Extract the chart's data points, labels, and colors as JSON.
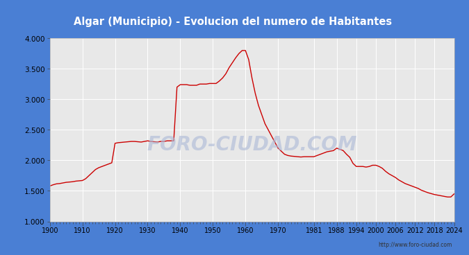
{
  "title": "Algar (Municipio) - Evolucion del numero de Habitantes",
  "title_bg_color": "#4a7fd4",
  "title_text_color": "#ffffff",
  "plot_bg_color": "#e8e8e8",
  "figure_bg_color": "#4a7fd4",
  "line_color": "#cc0000",
  "watermark_text": "FORO-CIUDAD.COM",
  "watermark_color": "#b0bcd8",
  "url_text": "http://www.foro-ciudad.com",
  "grid_color": "#ffffff",
  "ylim": [
    1000,
    4000
  ],
  "xlim": [
    1900,
    2024
  ],
  "ytick_labels": [
    "1.000",
    "1.500",
    "2.000",
    "2.500",
    "3.000",
    "3.500",
    "4.000"
  ],
  "ytick_values": [
    1000,
    1500,
    2000,
    2500,
    3000,
    3500,
    4000
  ],
  "xtick_values": [
    1900,
    1910,
    1920,
    1930,
    1940,
    1950,
    1960,
    1970,
    1981,
    1988,
    1994,
    2000,
    2006,
    2012,
    2018,
    2024
  ],
  "years": [
    1900,
    1901,
    1902,
    1903,
    1904,
    1905,
    1906,
    1907,
    1908,
    1909,
    1910,
    1911,
    1912,
    1913,
    1914,
    1915,
    1916,
    1917,
    1918,
    1919,
    1920,
    1921,
    1922,
    1923,
    1924,
    1925,
    1926,
    1927,
    1928,
    1929,
    1930,
    1931,
    1932,
    1933,
    1934,
    1935,
    1936,
    1937,
    1938,
    1939,
    1940,
    1941,
    1942,
    1943,
    1944,
    1945,
    1946,
    1947,
    1948,
    1949,
    1950,
    1951,
    1952,
    1953,
    1954,
    1955,
    1956,
    1957,
    1958,
    1959,
    1960,
    1961,
    1962,
    1963,
    1964,
    1965,
    1966,
    1967,
    1968,
    1969,
    1970,
    1971,
    1972,
    1973,
    1974,
    1975,
    1976,
    1977,
    1978,
    1979,
    1980,
    1981,
    1982,
    1983,
    1984,
    1985,
    1986,
    1987,
    1988,
    1989,
    1990,
    1991,
    1992,
    1993,
    1994,
    1995,
    1996,
    1997,
    1998,
    1999,
    2000,
    2001,
    2002,
    2003,
    2004,
    2005,
    2006,
    2007,
    2008,
    2009,
    2010,
    2011,
    2012,
    2013,
    2014,
    2015,
    2016,
    2017,
    2018,
    2019,
    2020,
    2021,
    2022,
    2023,
    2024
  ],
  "population": [
    1580,
    1600,
    1615,
    1620,
    1630,
    1640,
    1645,
    1650,
    1660,
    1665,
    1670,
    1700,
    1750,
    1800,
    1850,
    1880,
    1900,
    1920,
    1940,
    1960,
    2280,
    2290,
    2295,
    2300,
    2305,
    2310,
    2310,
    2305,
    2300,
    2310,
    2320,
    2310,
    2305,
    2300,
    2310,
    2310,
    2320,
    2320,
    2320,
    3200,
    3240,
    3240,
    3240,
    3230,
    3230,
    3230,
    3250,
    3250,
    3250,
    3260,
    3260,
    3260,
    3300,
    3350,
    3420,
    3520,
    3600,
    3680,
    3750,
    3800,
    3800,
    3650,
    3350,
    3100,
    2900,
    2750,
    2600,
    2500,
    2400,
    2300,
    2200,
    2150,
    2100,
    2080,
    2070,
    2065,
    2060,
    2055,
    2060,
    2060,
    2060,
    2060,
    2080,
    2100,
    2120,
    2140,
    2150,
    2160,
    2200,
    2180,
    2160,
    2100,
    2050,
    1950,
    1900,
    1900,
    1900,
    1890,
    1900,
    1920,
    1920,
    1900,
    1870,
    1820,
    1780,
    1750,
    1720,
    1680,
    1650,
    1620,
    1600,
    1580,
    1560,
    1540,
    1510,
    1490,
    1470,
    1455,
    1440,
    1430,
    1420,
    1410,
    1400,
    1400,
    1450
  ]
}
